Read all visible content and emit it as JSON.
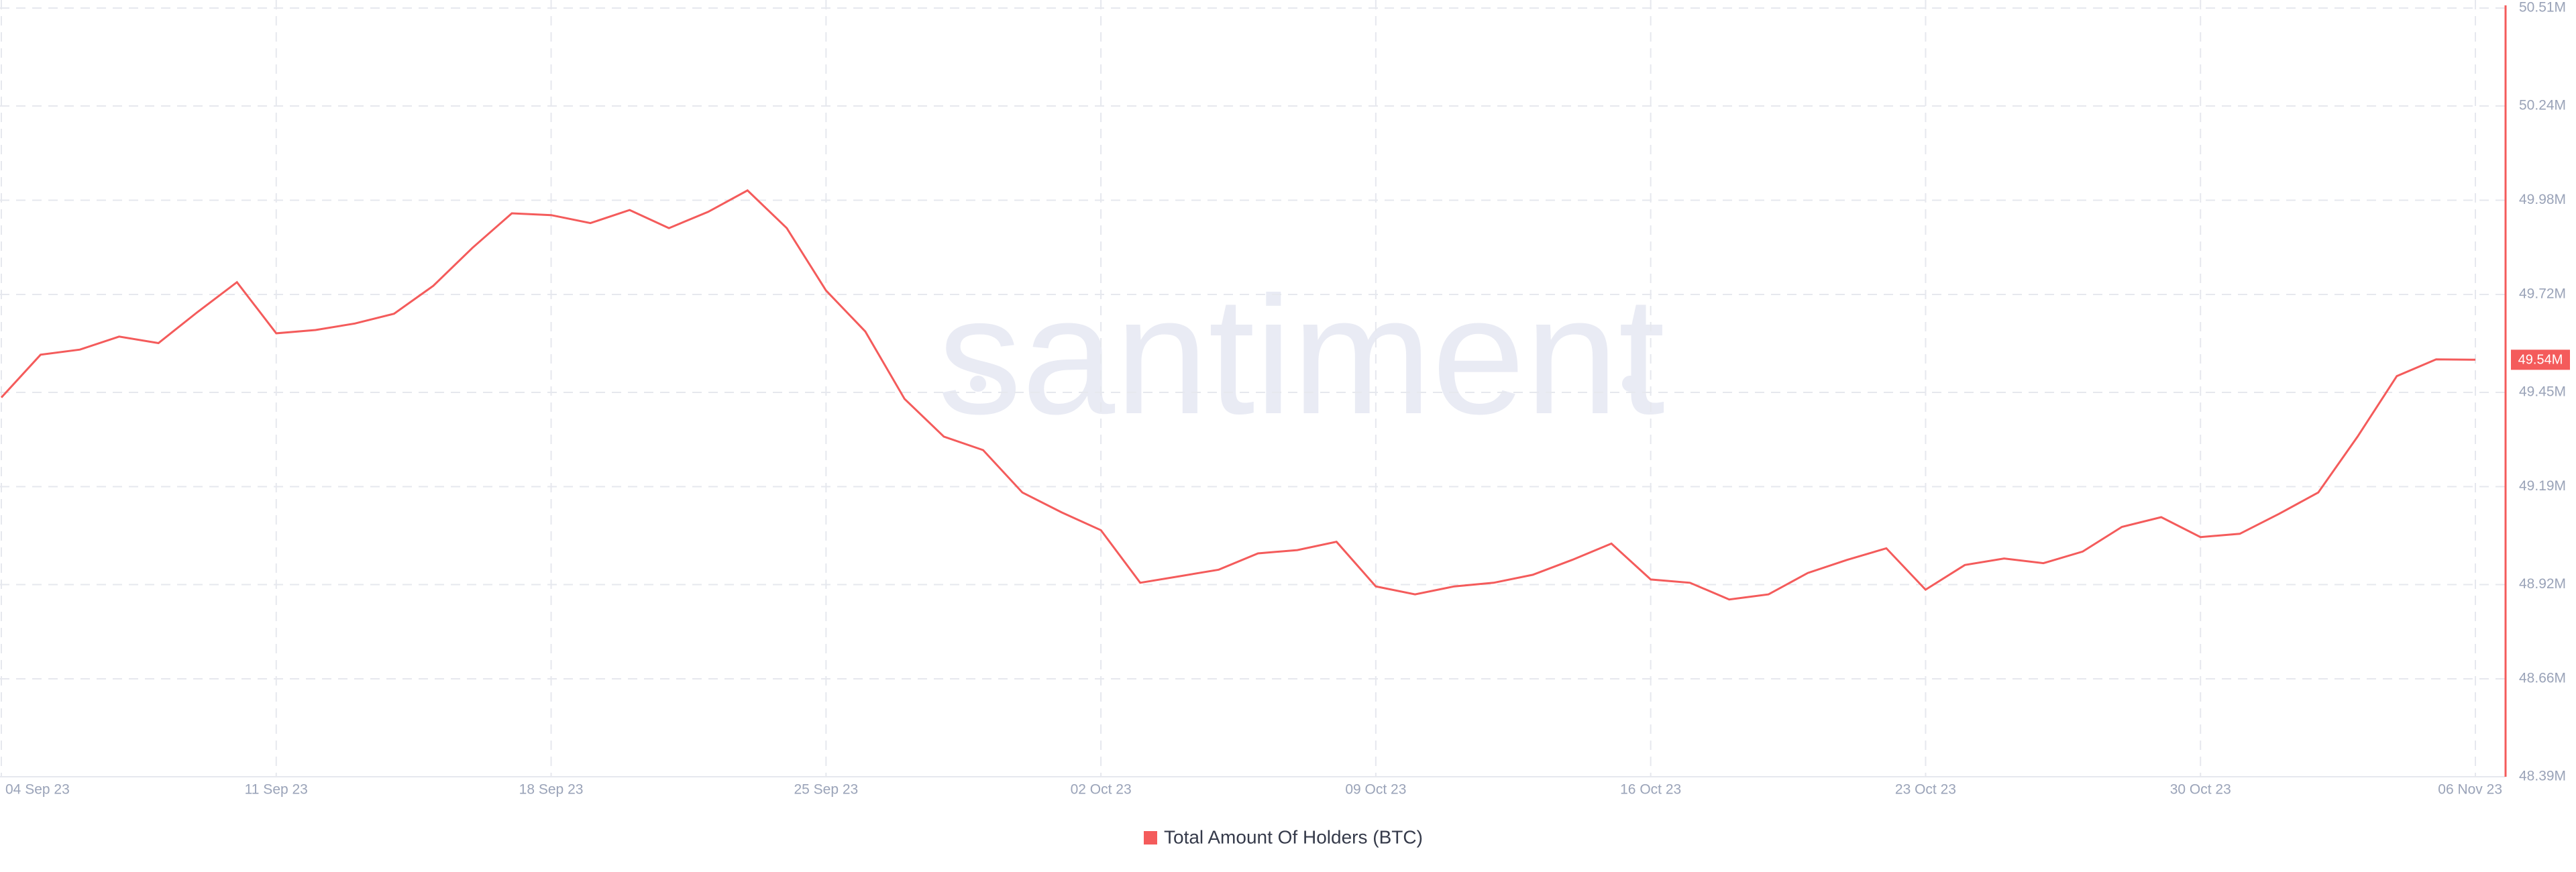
{
  "chart_data": {
    "type": "line",
    "watermark": "santiment",
    "categories": [
      "04 Sep 23",
      null,
      null,
      null,
      null,
      null,
      null,
      "11 Sep 23",
      null,
      null,
      null,
      null,
      null,
      null,
      "18 Sep 23",
      null,
      null,
      null,
      null,
      null,
      null,
      "25 Sep 23",
      null,
      null,
      null,
      null,
      null,
      null,
      "02 Oct 23",
      null,
      null,
      null,
      null,
      null,
      null,
      "09 Oct 23",
      null,
      null,
      null,
      null,
      null,
      null,
      "16 Oct 23",
      null,
      null,
      null,
      null,
      null,
      null,
      "23 Oct 23",
      null,
      null,
      null,
      null,
      null,
      null,
      "30 Oct 23",
      null,
      null,
      null,
      null,
      null,
      null,
      "06 Nov 23"
    ],
    "series": [
      {
        "name": "Total Amount Of Holders (BTC)",
        "color": "#f45b5b",
        "values": [
          49.436,
          49.554,
          49.568,
          49.604,
          49.586,
          49.672,
          49.754,
          49.613,
          49.622,
          49.64,
          49.667,
          49.744,
          49.849,
          49.944,
          49.939,
          49.917,
          49.953,
          49.903,
          49.948,
          50.007,
          49.903,
          49.731,
          49.618,
          49.432,
          49.328,
          49.291,
          49.174,
          49.119,
          49.07,
          48.925,
          48.943,
          48.961,
          49.006,
          49.015,
          49.038,
          48.915,
          48.893,
          48.915,
          48.925,
          48.947,
          48.988,
          49.033,
          48.934,
          48.925,
          48.879,
          48.893,
          48.952,
          48.988,
          49.02,
          48.906,
          48.974,
          48.992,
          48.979,
          49.011,
          49.079,
          49.106,
          49.051,
          49.06,
          49.115,
          49.174,
          49.328,
          49.495,
          49.541,
          49.54
        ],
        "value_labels": [
          null,
          null,
          null,
          null,
          null,
          null,
          null,
          null,
          null,
          null,
          null,
          null,
          null,
          null,
          null,
          null,
          null,
          null,
          null,
          null,
          null,
          null,
          null,
          null,
          null,
          null,
          null,
          null,
          null,
          null,
          null,
          null,
          null,
          null,
          null,
          null,
          null,
          null,
          null,
          null,
          null,
          null,
          null,
          null,
          null,
          null,
          null,
          null,
          null,
          null,
          null,
          null,
          null,
          null,
          null,
          null,
          null,
          null,
          null,
          null,
          null,
          null,
          null,
          "49.54M"
        ]
      }
    ],
    "ylim": [
      48.39,
      50.51
    ],
    "yticks": [
      {
        "value": 48.39,
        "label": "48.39M"
      },
      {
        "value": 48.66,
        "label": "48.66M"
      },
      {
        "value": 48.92,
        "label": "48.92M"
      },
      {
        "value": 49.19,
        "label": "49.19M"
      },
      {
        "value": 49.45,
        "label": "49.45M"
      },
      {
        "value": 49.72,
        "label": "49.72M"
      },
      {
        "value": 49.98,
        "label": "49.98M"
      },
      {
        "value": 50.24,
        "label": "50.24M"
      },
      {
        "value": 50.51,
        "label": "50.51M"
      }
    ],
    "grid": true,
    "legend": "bottom"
  }
}
